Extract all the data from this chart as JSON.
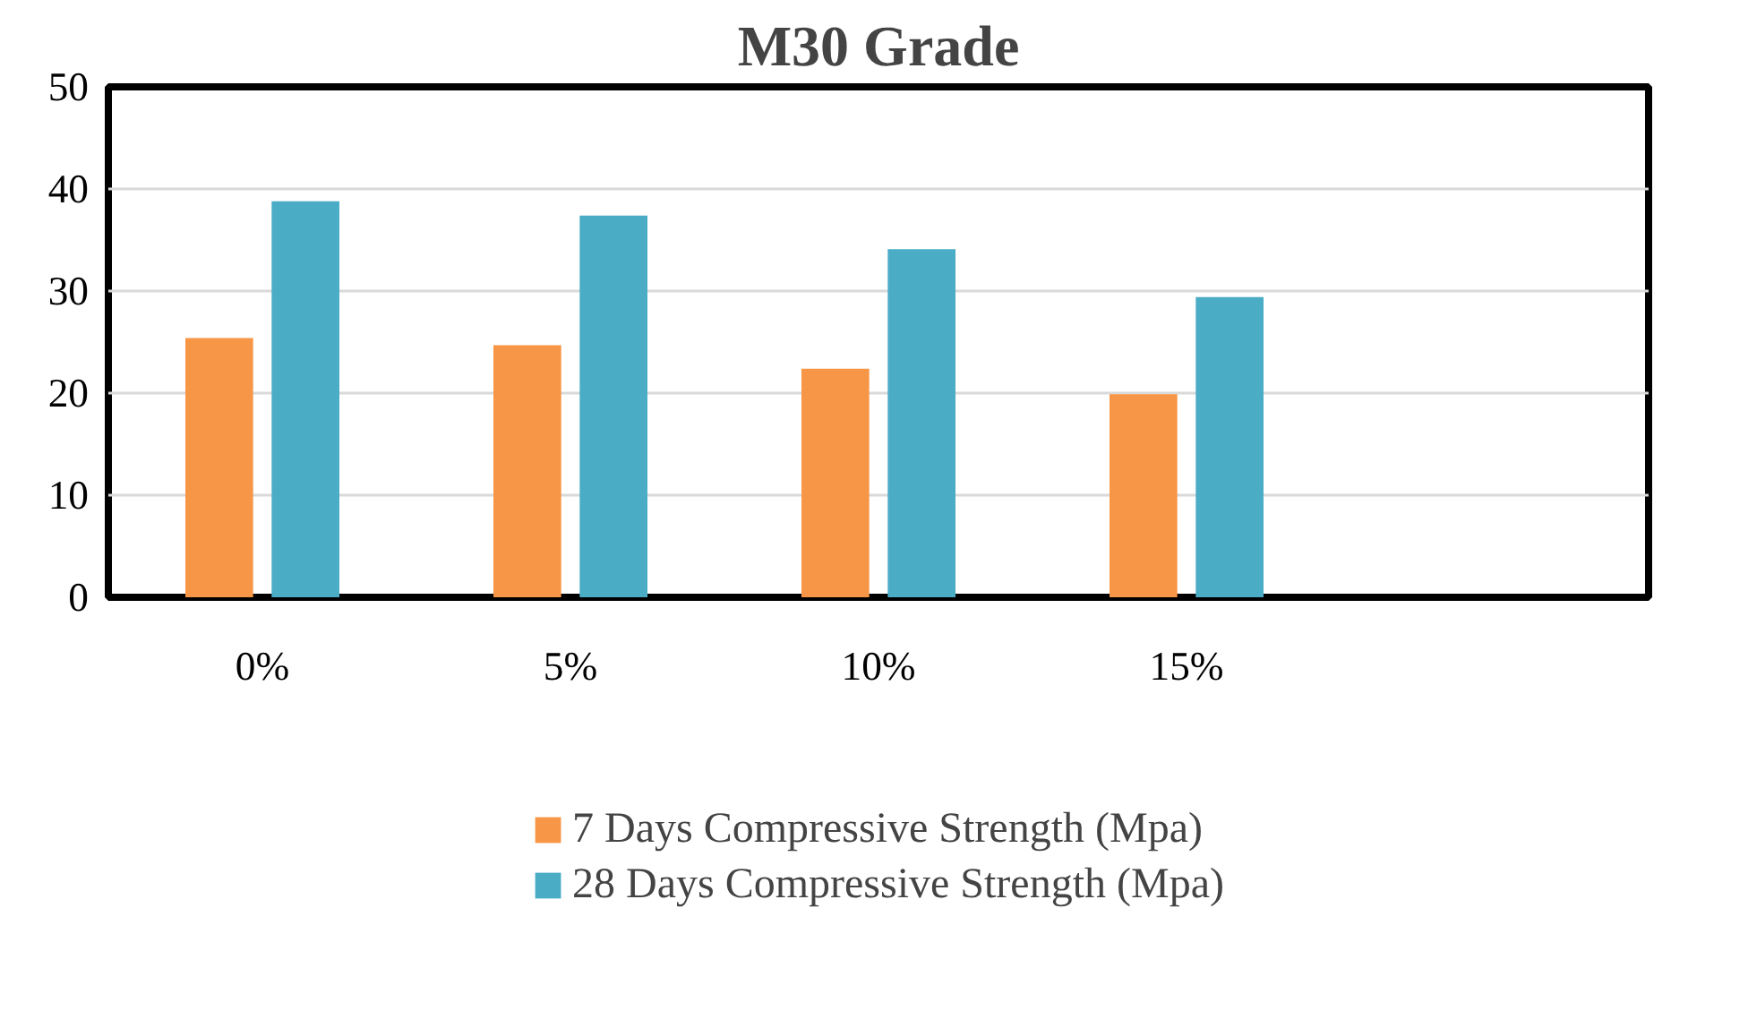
{
  "chart_data": {
    "type": "bar",
    "title": "M30 Grade",
    "categories": [
      "0%",
      "5%",
      "10%",
      "15%",
      null
    ],
    "series": [
      {
        "name": "7 Days Compressive Strength (Mpa)",
        "color": "#f79646",
        "values": [
          25.4,
          24.7,
          22.4,
          19.9,
          null
        ]
      },
      {
        "name": "28 Days Compressive Strength (Mpa)",
        "color": "#4bacc6",
        "values": [
          38.8,
          37.4,
          34.1,
          29.4,
          null
        ]
      }
    ],
    "ylim": [
      0,
      50
    ],
    "yticks": [
      0,
      10,
      20,
      30,
      40,
      50
    ],
    "grid": "y",
    "legend": "bottom"
  }
}
